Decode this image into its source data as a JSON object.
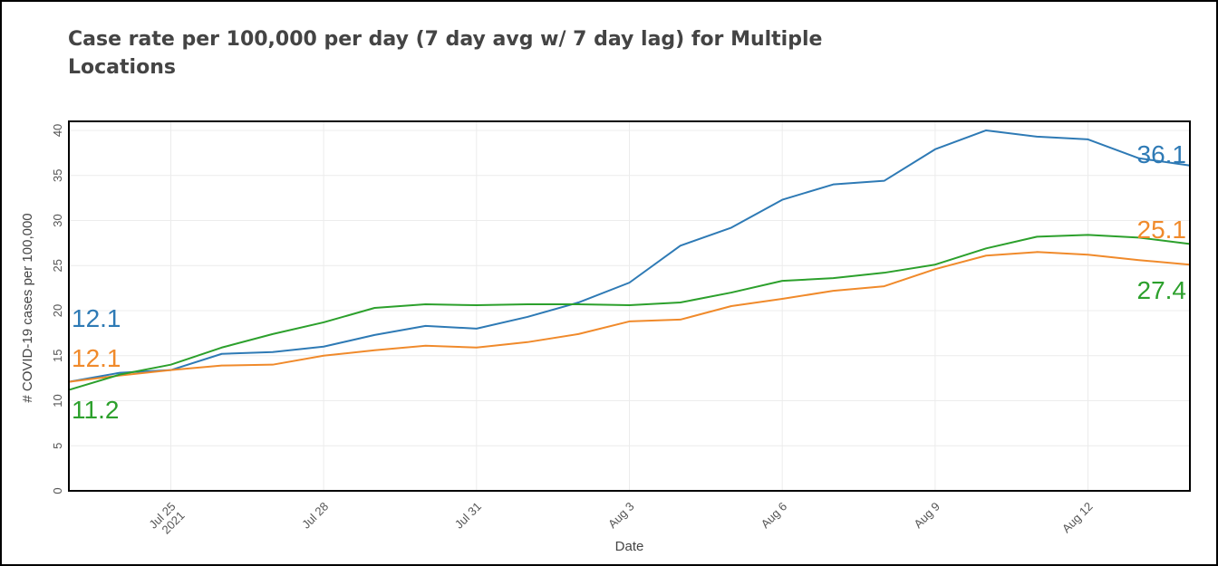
{
  "chart_data": {
    "type": "line",
    "title": "Case rate per 100,000 per day (7 day avg w/ 7 day lag) for Multiple Locations",
    "xlabel": "Date",
    "ylabel": "# COVID-19 cases per 100,000",
    "ylim": [
      0,
      41
    ],
    "yticks": [
      0,
      5,
      10,
      15,
      20,
      25,
      30,
      35,
      40
    ],
    "x": [
      "2021-07-24",
      "2021-07-25",
      "2021-07-26",
      "2021-07-27",
      "2021-07-28",
      "2021-07-29",
      "2021-07-30",
      "2021-07-31",
      "2021-08-01",
      "2021-08-02",
      "2021-08-03",
      "2021-08-04",
      "2021-08-05",
      "2021-08-06",
      "2021-08-07",
      "2021-08-08",
      "2021-08-09",
      "2021-08-10",
      "2021-08-11",
      "2021-08-12",
      "2021-08-13"
    ],
    "xticks": [
      {
        "date": "2021-07-25",
        "label": "Jul 25",
        "sublabel": "2021"
      },
      {
        "date": "2021-07-28",
        "label": "Jul 28",
        "sublabel": ""
      },
      {
        "date": "2021-07-31",
        "label": "Jul 31",
        "sublabel": ""
      },
      {
        "date": "2021-08-03",
        "label": "Aug 3",
        "sublabel": ""
      },
      {
        "date": "2021-08-06",
        "label": "Aug 6",
        "sublabel": ""
      },
      {
        "date": "2021-08-09",
        "label": "Aug 9",
        "sublabel": ""
      },
      {
        "date": "2021-08-12",
        "label": "Aug 12",
        "sublabel": ""
      }
    ],
    "x_start": "2021-07-23",
    "x_end": "2021-08-14",
    "grid": true,
    "legend": "none",
    "series": [
      {
        "color": "#2e7ab5",
        "start_point": 12.1,
        "values": [
          13.1,
          13.4,
          15.2,
          15.4,
          16.0,
          17.3,
          18.3,
          18.0,
          19.3,
          20.9,
          23.1,
          27.2,
          29.2,
          32.3,
          34.0,
          34.4,
          37.9,
          40.0,
          39.3,
          39.0,
          36.9
        ],
        "end_point": 36.1,
        "start_label": "12.1",
        "end_label": "36.1"
      },
      {
        "color": "#f08a2b",
        "start_point": 12.1,
        "values": [
          12.8,
          13.4,
          13.9,
          14.0,
          15.0,
          15.6,
          16.1,
          15.9,
          16.5,
          17.4,
          18.8,
          19.0,
          20.5,
          21.3,
          22.2,
          22.7,
          24.6,
          26.1,
          26.5,
          26.2,
          25.6
        ],
        "end_point": 25.1,
        "start_label": "12.1",
        "end_label": "25.1"
      },
      {
        "color": "#2ca02c",
        "start_point": 11.2,
        "values": [
          12.9,
          14.0,
          15.9,
          17.4,
          18.7,
          20.3,
          20.7,
          20.6,
          20.7,
          20.7,
          20.6,
          20.9,
          22.0,
          23.3,
          23.6,
          24.2,
          25.1,
          26.9,
          28.2,
          28.4,
          28.1
        ],
        "end_point": 27.4,
        "start_label": "11.2",
        "end_label": "27.4"
      }
    ]
  }
}
